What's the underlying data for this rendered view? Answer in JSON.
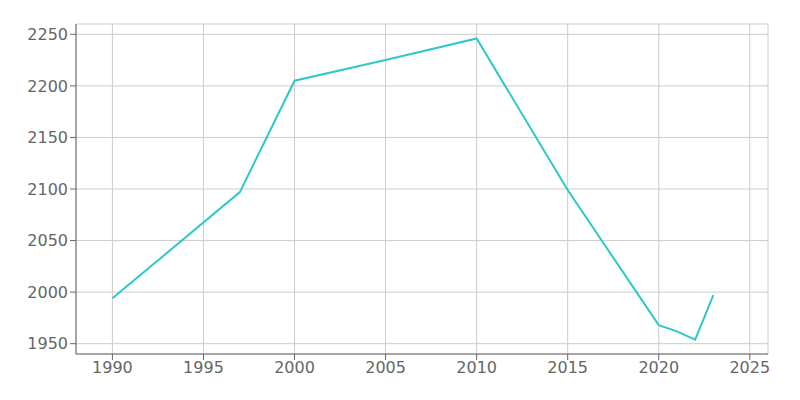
{
  "chart_data": {
    "type": "line",
    "x": [
      1990,
      1997,
      2000,
      2005,
      2010,
      2015,
      2020,
      2021,
      2022,
      2023
    ],
    "values": [
      1994,
      2097,
      2205,
      2225,
      2246,
      2099,
      1968,
      1962,
      1954,
      1997
    ],
    "color": "#2ec8c8",
    "xlim": [
      1988,
      2026
    ],
    "ylim": [
      1940,
      2260
    ],
    "xticks": [
      1990,
      1995,
      2000,
      2005,
      2010,
      2015,
      2020,
      2025
    ],
    "yticks": [
      1950,
      2000,
      2050,
      2100,
      2150,
      2200,
      2250
    ],
    "grid": true
  }
}
